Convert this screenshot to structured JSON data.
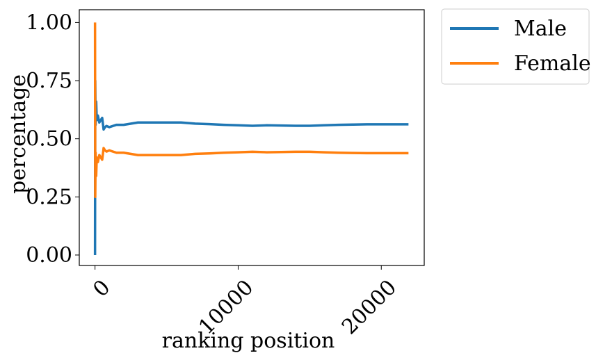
{
  "chart_data": {
    "type": "line",
    "xlabel": "ranking position",
    "ylabel": "percentage",
    "xlim": [
      -1100,
      23000
    ],
    "ylim": [
      -0.045,
      1.055
    ],
    "xticks": [
      0,
      10000,
      20000
    ],
    "xtick_labels": [
      "0",
      "10000",
      "20000"
    ],
    "yticks": [
      0.0,
      0.25,
      0.5,
      0.75,
      1.0
    ],
    "ytick_labels": [
      "0.00",
      "0.25",
      "0.50",
      "0.75",
      "1.00"
    ],
    "grid": false,
    "legend_position": "outside upper right",
    "series": [
      {
        "name": "Male",
        "color": "#1f77b4",
        "x": [
          0,
          15,
          40,
          80,
          120,
          200,
          300,
          400,
          500,
          600,
          700,
          800,
          1000,
          1500,
          2000,
          3000,
          4000,
          5000,
          6000,
          7000,
          8000,
          9000,
          10000,
          11000,
          12000,
          13000,
          14000,
          15000,
          16000,
          17000,
          18000,
          19000,
          20000,
          21000,
          21900
        ],
        "y": [
          0.0,
          0.75,
          0.56,
          0.66,
          0.58,
          0.6,
          0.57,
          0.58,
          0.59,
          0.54,
          0.55,
          0.555,
          0.55,
          0.56,
          0.56,
          0.57,
          0.57,
          0.57,
          0.57,
          0.565,
          0.563,
          0.56,
          0.558,
          0.556,
          0.558,
          0.557,
          0.556,
          0.556,
          0.558,
          0.56,
          0.561,
          0.562,
          0.562,
          0.562,
          0.562
        ]
      },
      {
        "name": "Female",
        "color": "#ff7f0e",
        "x": [
          0,
          15,
          40,
          80,
          120,
          200,
          300,
          400,
          500,
          600,
          700,
          800,
          1000,
          1500,
          2000,
          3000,
          4000,
          5000,
          6000,
          7000,
          8000,
          9000,
          10000,
          11000,
          12000,
          13000,
          14000,
          15000,
          16000,
          17000,
          18000,
          19000,
          20000,
          21000,
          21900
        ],
        "y": [
          1.0,
          0.25,
          0.44,
          0.34,
          0.42,
          0.4,
          0.43,
          0.42,
          0.41,
          0.46,
          0.45,
          0.445,
          0.45,
          0.44,
          0.44,
          0.43,
          0.43,
          0.43,
          0.43,
          0.435,
          0.437,
          0.44,
          0.442,
          0.444,
          0.442,
          0.443,
          0.444,
          0.444,
          0.442,
          0.44,
          0.439,
          0.438,
          0.438,
          0.438,
          0.438
        ]
      }
    ]
  }
}
